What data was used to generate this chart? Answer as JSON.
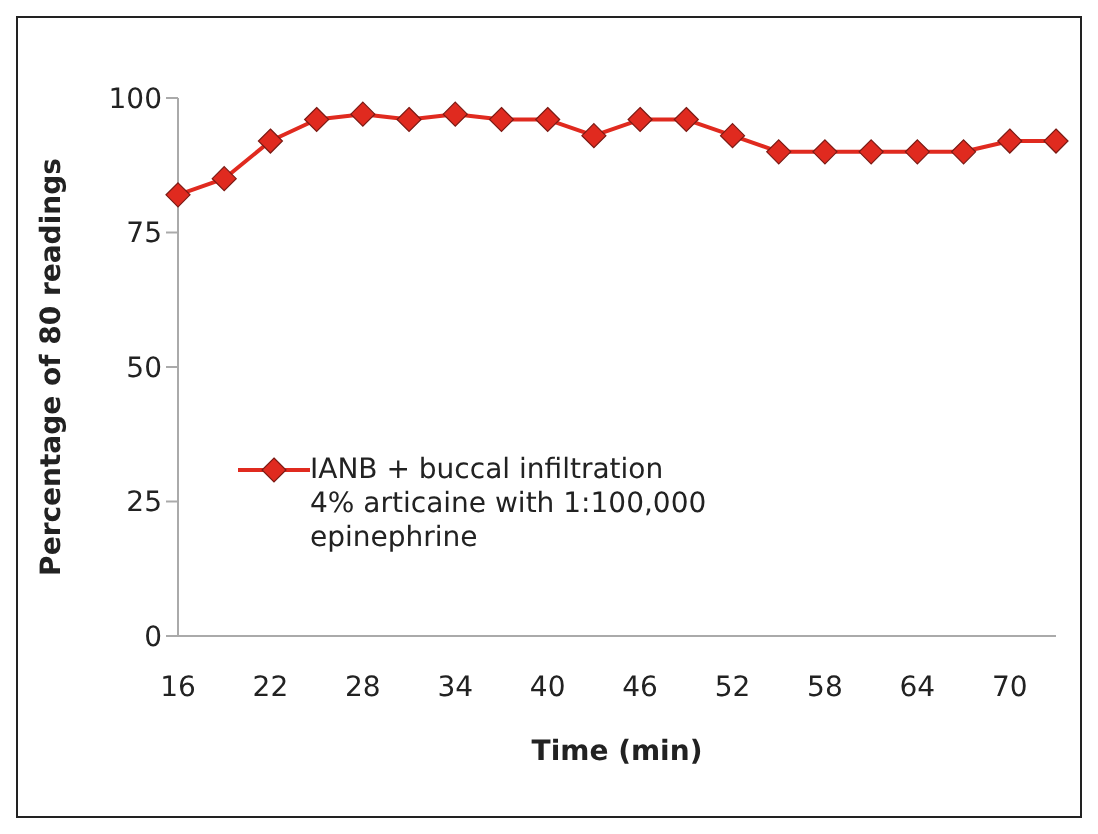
{
  "chart_data": {
    "type": "line",
    "xlabel": "Time (min)",
    "ylabel": "Percentage of 80 readings",
    "categories": [
      "16",
      null,
      "22",
      null,
      "28",
      null,
      "34",
      null,
      "40",
      null,
      "46",
      null,
      "52",
      null,
      "58",
      null,
      "64",
      null,
      "70",
      null
    ],
    "series": [
      {
        "name": "IANB + buccal infiltration 4% articaine with 1:100,000 epinephrine",
        "color": "#e02a1f",
        "values": [
          82,
          85,
          92,
          96,
          97,
          96,
          97,
          96,
          96,
          93,
          96,
          96,
          93,
          90,
          90,
          90,
          90,
          90,
          92,
          92
        ]
      }
    ],
    "ylim": [
      0,
      100
    ],
    "yticks": [
      0,
      25,
      50,
      75,
      100
    ],
    "grid": false,
    "legend": "left",
    "marker": "diamond",
    "line_style": "solid"
  }
}
